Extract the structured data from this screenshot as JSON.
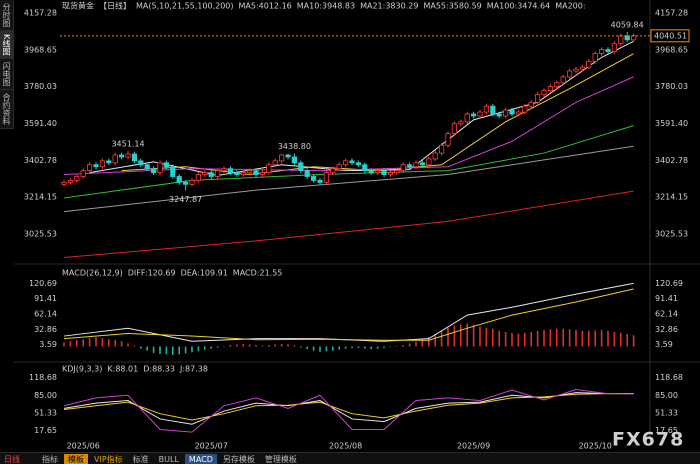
{
  "sidebar": {
    "tabs": [
      "分时图",
      "K线图",
      "闪电图",
      "合约资料"
    ]
  },
  "toolbar": {
    "period": "日线",
    "buttons": [
      "指标",
      "模板",
      "VIP指标",
      "标准",
      "BULL",
      "MACD",
      "另存模板",
      "管理模板"
    ]
  },
  "watermark": "FX678",
  "chart_data": [
    {
      "type": "candlestick",
      "title": "现货黄金",
      "period": "【日线】",
      "indicator": "MA(5,10,21,55,100,200)",
      "up_color": "#ff3b3b",
      "down_color": "#2ad0d0",
      "ohlc": [
        [
          3280,
          3302,
          3268,
          3290
        ],
        [
          3290,
          3312,
          3278,
          3300
        ],
        [
          3300,
          3332,
          3288,
          3320
        ],
        [
          3320,
          3362,
          3308,
          3350
        ],
        [
          3350,
          3392,
          3338,
          3380
        ],
        [
          3380,
          3392,
          3358,
          3370
        ],
        [
          3370,
          3412,
          3358,
          3400
        ],
        [
          3400,
          3412,
          3378,
          3390
        ],
        [
          3390,
          3442,
          3378,
          3430
        ],
        [
          3430,
          3442,
          3408,
          3420
        ],
        [
          3420,
          3451.14,
          3408,
          3435
        ],
        [
          3435,
          3447,
          3388,
          3400
        ],
        [
          3400,
          3412,
          3368,
          3380
        ],
        [
          3380,
          3392,
          3348,
          3360
        ],
        [
          3360,
          3372,
          3328,
          3340
        ],
        [
          3340,
          3402,
          3328,
          3390
        ],
        [
          3390,
          3402,
          3358,
          3370
        ],
        [
          3370,
          3382,
          3308,
          3320
        ],
        [
          3320,
          3332,
          3278,
          3290
        ],
        [
          3290,
          3302,
          3247.87,
          3280
        ],
        [
          3280,
          3312,
          3268,
          3300
        ],
        [
          3300,
          3342,
          3288,
          3330
        ],
        [
          3330,
          3352,
          3318,
          3340
        ],
        [
          3340,
          3352,
          3308,
          3320
        ],
        [
          3320,
          3362,
          3308,
          3350
        ],
        [
          3350,
          3372,
          3338,
          3360
        ],
        [
          3360,
          3372,
          3328,
          3340
        ],
        [
          3340,
          3352,
          3318,
          3330
        ],
        [
          3330,
          3352,
          3318,
          3340
        ],
        [
          3340,
          3362,
          3328,
          3350
        ],
        [
          3350,
          3362,
          3318,
          3330
        ],
        [
          3330,
          3352,
          3318,
          3340
        ],
        [
          3340,
          3392,
          3328,
          3380
        ],
        [
          3380,
          3412,
          3368,
          3400
        ],
        [
          3400,
          3436,
          3388,
          3430
        ],
        [
          3430,
          3436,
          3408,
          3420
        ],
        [
          3420,
          3438.8,
          3378,
          3390
        ],
        [
          3390,
          3402,
          3338,
          3350
        ],
        [
          3350,
          3362,
          3308,
          3320
        ],
        [
          3320,
          3332,
          3288,
          3300
        ],
        [
          3300,
          3312,
          3278,
          3290
        ],
        [
          3290,
          3352,
          3278,
          3340
        ],
        [
          3340,
          3372,
          3328,
          3360
        ],
        [
          3360,
          3392,
          3348,
          3380
        ],
        [
          3380,
          3412,
          3368,
          3400
        ],
        [
          3400,
          3412,
          3378,
          3390
        ],
        [
          3390,
          3402,
          3368,
          3380
        ],
        [
          3380,
          3392,
          3338,
          3350
        ],
        [
          3350,
          3362,
          3328,
          3340
        ],
        [
          3340,
          3362,
          3328,
          3350
        ],
        [
          3350,
          3362,
          3318,
          3330
        ],
        [
          3330,
          3352,
          3318,
          3340
        ],
        [
          3340,
          3362,
          3328,
          3350
        ],
        [
          3350,
          3392,
          3338,
          3380
        ],
        [
          3380,
          3392,
          3358,
          3370
        ],
        [
          3370,
          3402,
          3358,
          3390
        ],
        [
          3390,
          3402,
          3368,
          3380
        ],
        [
          3380,
          3422,
          3368,
          3410
        ],
        [
          3410,
          3452,
          3398,
          3440
        ],
        [
          3440,
          3492,
          3428,
          3480
        ],
        [
          3480,
          3552,
          3468,
          3540
        ],
        [
          3540,
          3602,
          3528,
          3590
        ],
        [
          3590,
          3612,
          3578,
          3600
        ],
        [
          3600,
          3652,
          3588,
          3640
        ],
        [
          3640,
          3652,
          3618,
          3630
        ],
        [
          3630,
          3662,
          3618,
          3650
        ],
        [
          3650,
          3692,
          3638,
          3680
        ],
        [
          3680,
          3692,
          3628,
          3640
        ],
        [
          3640,
          3652,
          3618,
          3630
        ],
        [
          3630,
          3672,
          3618,
          3660
        ],
        [
          3660,
          3672,
          3628,
          3640
        ],
        [
          3640,
          3662,
          3628,
          3650
        ],
        [
          3650,
          3692,
          3638,
          3680
        ],
        [
          3680,
          3712,
          3668,
          3700
        ],
        [
          3700,
          3752,
          3688,
          3740
        ],
        [
          3740,
          3772,
          3728,
          3760
        ],
        [
          3760,
          3792,
          3748,
          3780
        ],
        [
          3780,
          3812,
          3768,
          3800
        ],
        [
          3800,
          3842,
          3788,
          3830
        ],
        [
          3830,
          3872,
          3818,
          3860
        ],
        [
          3860,
          3882,
          3848,
          3870
        ],
        [
          3870,
          3892,
          3858,
          3880
        ],
        [
          3880,
          3922,
          3868,
          3910
        ],
        [
          3910,
          3962,
          3898,
          3950
        ],
        [
          3950,
          3982,
          3938,
          3970
        ],
        [
          3970,
          3982,
          3948,
          3960
        ],
        [
          3960,
          4012,
          3948,
          4000
        ],
        [
          4000,
          4052,
          3988,
          4040
        ],
        [
          4040,
          4059.84,
          4008,
          4020
        ],
        [
          4020,
          4052,
          4008,
          4040.51
        ]
      ],
      "series": [
        {
          "label": "MA5:4012.16",
          "color": "#e8e8e8",
          "x": [
            4,
            14,
            24,
            34,
            44,
            54,
            64,
            74,
            84,
            89
          ],
          "values": [
            3340,
            3395,
            3325,
            3380,
            3350,
            3355,
            3610,
            3700,
            3930,
            4012.16
          ]
        },
        {
          "label": "MA10:3948.83",
          "color": "#f0d020",
          "x": [
            9,
            19,
            29,
            39,
            49,
            59,
            69,
            79,
            89
          ],
          "values": [
            3350,
            3370,
            3330,
            3370,
            3350,
            3380,
            3600,
            3770,
            3948.83
          ]
        },
        {
          "label": "MA21:3830.29",
          "color": "#d040d0",
          "x": [
            0,
            20,
            40,
            60,
            70,
            80,
            89
          ],
          "values": [
            3330,
            3360,
            3350,
            3370,
            3500,
            3700,
            3830.29
          ]
        },
        {
          "label": "MA55:3580.59",
          "color": "#30c030",
          "x": [
            0,
            20,
            40,
            60,
            75,
            89
          ],
          "values": [
            3210,
            3300,
            3330,
            3350,
            3440,
            3580.59
          ]
        },
        {
          "label": "MA100:3474.64",
          "color": "#9a9a9a",
          "x": [
            0,
            30,
            60,
            89
          ],
          "values": [
            3140,
            3250,
            3330,
            3474.64
          ]
        },
        {
          "label": "MA200:",
          "color": "#e02020",
          "x": [
            0,
            30,
            60,
            89
          ],
          "values": [
            2905,
            2990,
            3090,
            3245
          ]
        }
      ],
      "annotations": [
        {
          "x": 10,
          "value": 3451.14,
          "label": "3451.14"
        },
        {
          "x": 19,
          "value": 3247.87,
          "label": "3247.87"
        },
        {
          "x": 36,
          "value": 3438.8,
          "label": "3438.80"
        },
        {
          "x": 88,
          "value": 4059.84,
          "label": "4059.84"
        }
      ],
      "last_price": {
        "value": 4040.51,
        "label": "4040.51",
        "color": "#ff8c00"
      },
      "ylim": [
        2882,
        4183
      ],
      "yticks": [
        4157.28,
        3968.65,
        3780.03,
        3591.4,
        3402.78,
        3214.15,
        3025.53
      ],
      "ytick_labels": [
        "4157.28",
        "3968.65",
        "3780.03",
        "3591.40",
        "3402.78",
        "3214.15",
        "3025.53"
      ],
      "xticks": [
        {
          "value": 3,
          "label": "2025/06"
        },
        {
          "value": 23,
          "label": "2025/07"
        },
        {
          "value": 44,
          "label": "2025/08"
        },
        {
          "value": 64,
          "label": "2025/09"
        },
        {
          "value": 83,
          "label": "2025/10"
        }
      ]
    },
    {
      "type": "macd",
      "title": "MACD(26,12,9)",
      "series": [
        {
          "label": "DIFF:120.69",
          "color": "#e8e8e8",
          "x": [
            0,
            10,
            20,
            30,
            40,
            50,
            57,
            63,
            70,
            80,
            89
          ],
          "values": [
            20,
            35,
            10,
            15,
            15,
            10,
            15,
            60,
            75,
            100,
            120.69
          ]
        },
        {
          "label": "DEA:109.91",
          "color": "#f0d020",
          "x": [
            0,
            10,
            20,
            30,
            40,
            50,
            57,
            63,
            70,
            80,
            89
          ],
          "values": [
            15,
            25,
            20,
            13,
            14,
            12,
            12,
            35,
            60,
            85,
            109.91
          ]
        }
      ],
      "histogram": {
        "label": "MACD:21.55",
        "color": "#d040d0",
        "up_color": "#e03030",
        "down_color": "#20b0a0",
        "values": [
          8,
          10,
          12,
          14,
          16,
          18,
          16,
          14,
          12,
          10,
          6,
          2,
          -4,
          -8,
          -12,
          -14,
          -15,
          -16,
          -15,
          -13,
          -11,
          -9,
          -6,
          -4,
          -2,
          1,
          3,
          4,
          5,
          4,
          3,
          2,
          3,
          4,
          5,
          4,
          2,
          -2,
          -5,
          -8,
          -10,
          -9,
          -8,
          -6,
          -4,
          -3,
          -3,
          -4,
          -5,
          -4,
          -3,
          -1,
          1,
          3,
          6,
          9,
          12,
          18,
          24,
          30,
          36,
          40,
          42,
          44,
          42,
          38,
          36,
          34,
          30,
          28,
          26,
          25,
          26,
          28,
          30,
          32,
          33,
          34,
          34,
          33,
          32,
          30,
          30,
          31,
          32,
          30,
          28,
          26,
          24,
          21.55
        ]
      },
      "ylim": [
        -20,
        150
      ],
      "yticks": [
        120.69,
        91.41,
        62.14,
        32.86,
        3.59
      ]
    },
    {
      "type": "kdj",
      "title": "KDJ(9,3,3)",
      "series": [
        {
          "label": "K:88.01",
          "color": "#e8e8e8",
          "x": [
            0,
            5,
            10,
            15,
            20,
            25,
            30,
            35,
            40,
            45,
            50,
            55,
            60,
            65,
            70,
            75,
            80,
            85,
            89
          ],
          "values": [
            60,
            70,
            75,
            40,
            30,
            55,
            70,
            65,
            75,
            40,
            35,
            60,
            70,
            72,
            85,
            80,
            90,
            88,
            88.01
          ]
        },
        {
          "label": "D:88.33",
          "color": "#f0d020",
          "x": [
            0,
            5,
            10,
            15,
            20,
            25,
            30,
            35,
            40,
            45,
            50,
            55,
            60,
            65,
            70,
            75,
            80,
            85,
            89
          ],
          "values": [
            58,
            65,
            72,
            50,
            38,
            50,
            65,
            66,
            72,
            50,
            42,
            55,
            66,
            70,
            80,
            82,
            87,
            88,
            88.33
          ]
        },
        {
          "label": "J:87.38",
          "color": "#d040d0",
          "x": [
            0,
            5,
            10,
            15,
            20,
            25,
            30,
            35,
            40,
            45,
            50,
            55,
            60,
            65,
            70,
            75,
            80,
            85,
            89
          ],
          "values": [
            65,
            80,
            85,
            20,
            15,
            65,
            80,
            60,
            85,
            20,
            20,
            75,
            80,
            75,
            95,
            76,
            96,
            88,
            87.38
          ]
        }
      ],
      "ylim": [
        0,
        133
      ],
      "yticks": [
        118.68,
        {
          "value": 85,
          "label": "85.00"
        },
        51.33,
        17.65
      ]
    }
  ]
}
